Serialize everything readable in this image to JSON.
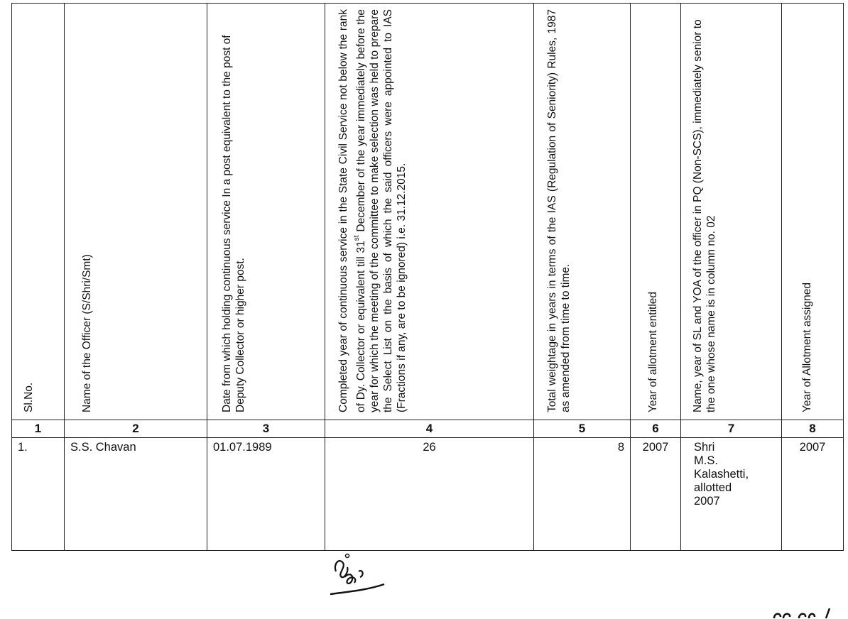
{
  "headers": [
    "Sl.No.",
    "Name of the Officer (S/Shri/Smt)",
    "Date from which holding continuous service In a post equivalent to the post of Deputy Collector or higher post.",
    {
      "pre": "Completed year of continuous service in the State Civil Service not below the rank of Dy. Collector or equivalent till 31",
      "sup": "st",
      "post": " December of the year immediately before the year for which the meeting of the committee to make selection was held to prepare the Select List on the basis of which the said officers were appointed to IAS (Fractions if any, are to be ignored) i.e. 31.12.2015."
    },
    "Total weightage in years in terms of the IAS (Regulation of Seniority) Rules, 1987 as amended from time to time.",
    "Year of allotment entitled",
    "Name, year of SL and YOA of the officer in PQ (Non-SCS), immediately senior to the one whose name is in column no. 02",
    "Year of Allotment assigned"
  ],
  "column_numbers": [
    "1",
    "2",
    "3",
    "4",
    "5",
    "6",
    "7",
    "8"
  ],
  "rows": [
    {
      "sl": "1.",
      "name": "S.S. Chavan",
      "date": "01.07.1989",
      "years": "26",
      "weightage": "8",
      "yoa_entitled": "2007",
      "senior": "Shri\nM.S.\nKalashetti,\nallotted\n2007",
      "yoa_assigned": "2007"
    }
  ]
}
